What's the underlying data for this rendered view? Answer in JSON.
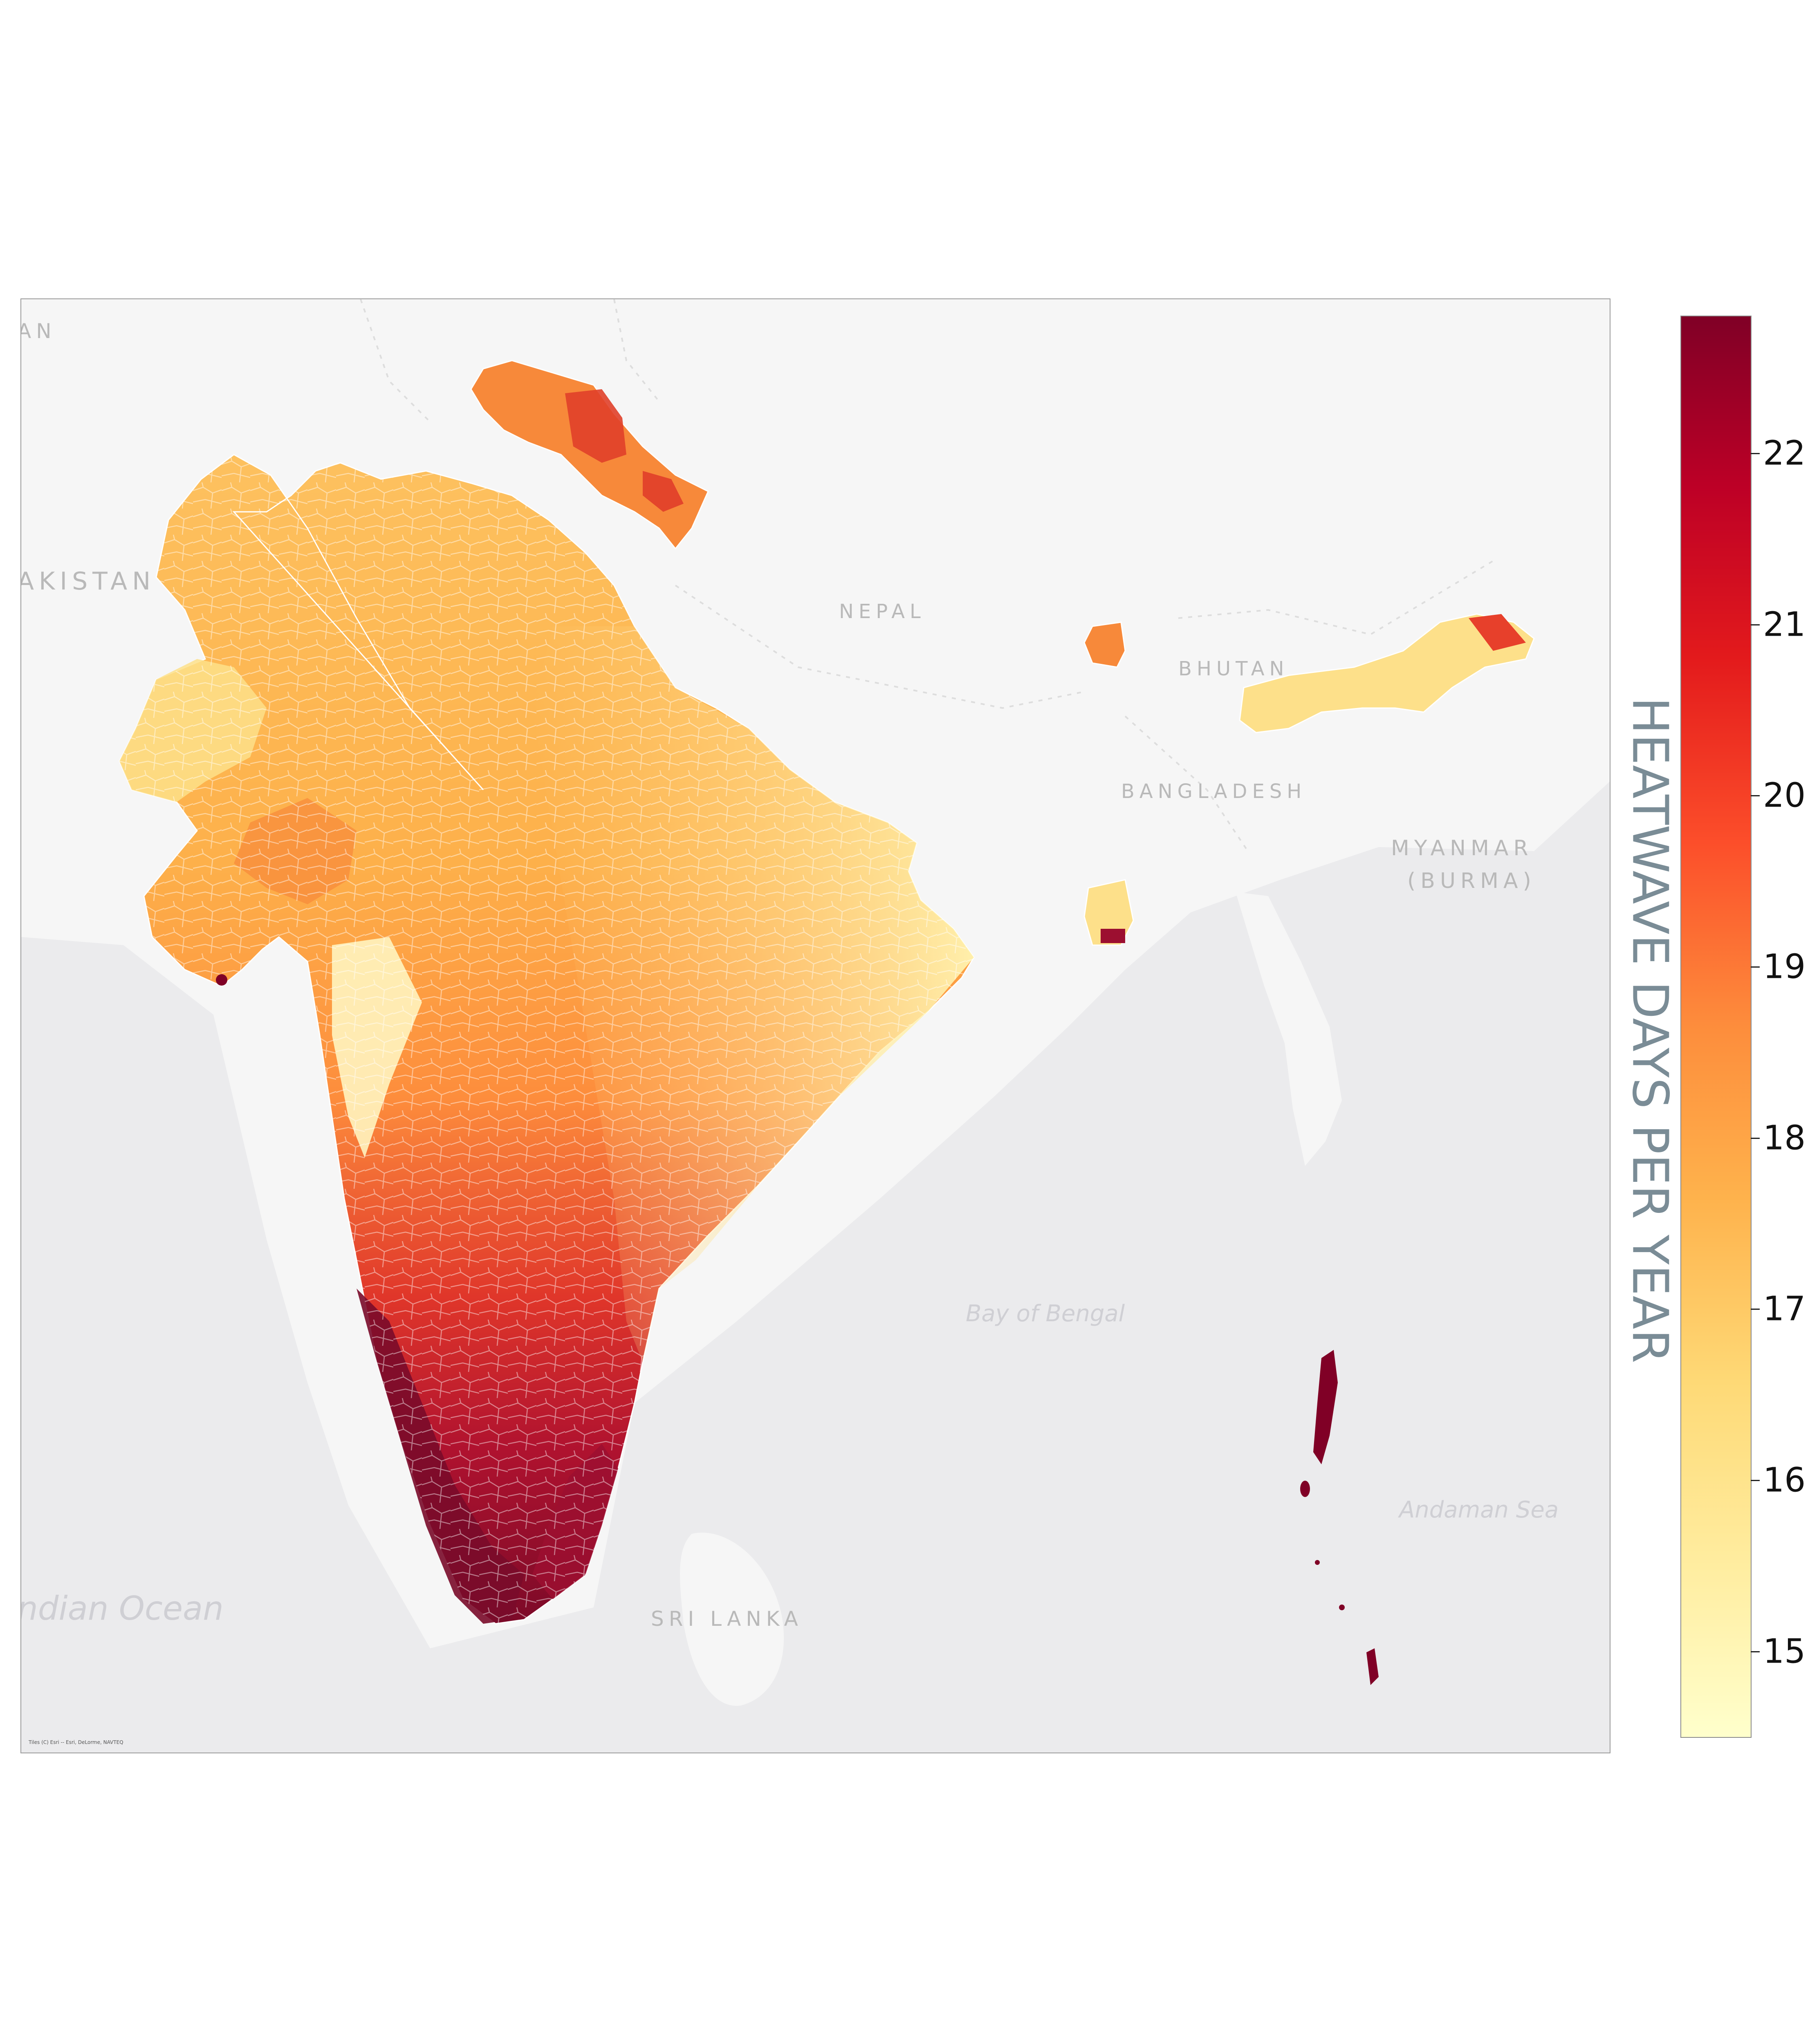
{
  "map": {
    "place_labels": {
      "pakistan_top": "AN",
      "pakistan": "AKISTAN",
      "nepal": "NEPAL",
      "bhutan": "BHUTAN",
      "bangladesh": "BANGLADESH",
      "myanmar_1": "MYANMAR",
      "myanmar_2": "(BURMA)",
      "sri_lanka": "SRI LANKA"
    },
    "water_labels": {
      "bay_of_bengal": "Bay of Bengal",
      "andaman_sea": "Andaman Sea",
      "indian_ocean": "ndian Ocean"
    },
    "attribution": "Tiles (C) Esri -- Esri, DeLorme, NAVTEQ",
    "colors": {
      "water": "#ebebed",
      "land": "#f6f6f6",
      "district_borders": "#ffffff"
    }
  },
  "colorbar": {
    "title": "HEATWAVE DAYS PER YEAR",
    "min": 14.5,
    "max": 22.8,
    "ticks": [
      "15",
      "16",
      "17",
      "18",
      "19",
      "20",
      "21",
      "22"
    ],
    "colormap": "YlOrRd",
    "color_stops": [
      "#ffffcc",
      "#ffeda0",
      "#fed976",
      "#feb24c",
      "#fd8d3c",
      "#fc4e2a",
      "#e31a1c",
      "#bd0026",
      "#800026"
    ]
  }
}
